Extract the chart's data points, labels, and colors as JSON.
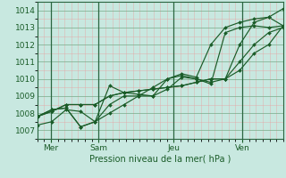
{
  "title": "",
  "xlabel": "Pression niveau de la mer( hPa )",
  "ylabel": "",
  "bg_color": "#c8e8e0",
  "plot_bg_color": "#c8e8e0",
  "grid_major_color": "#77aa88",
  "grid_minor_color": "#e8a0a0",
  "line_color": "#1a5c28",
  "tick_label_color": "#1a5c28",
  "xlabel_color": "#1a5c28",
  "ylim": [
    1006.7,
    1014.3
  ],
  "yticks": [
    1007,
    1008,
    1009,
    1010,
    1011,
    1012,
    1013,
    1014
  ],
  "xlim": [
    0,
    18
  ],
  "xtick_positions": [
    1,
    4.5,
    10,
    15
  ],
  "xtick_labels": [
    "Mer",
    "Sam",
    "Jeu",
    "Ven"
  ],
  "major_vlines": [
    1,
    4.5,
    10,
    15
  ],
  "series": [
    [
      1007.3,
      1007.5,
      1008.2,
      1008.1,
      1007.5,
      1009.6,
      1009.2,
      1009.1,
      1009.0,
      1010.0,
      1010.3,
      1010.1,
      1012.0,
      1013.0,
      1013.3,
      1013.5,
      1013.6,
      1014.1
    ],
    [
      1007.8,
      1008.2,
      1008.3,
      1007.2,
      1007.5,
      1008.0,
      1008.5,
      1009.0,
      1009.0,
      1009.4,
      1010.1,
      1010.0,
      1009.7,
      1012.7,
      1013.0,
      1013.1,
      1013.0,
      1013.1
    ],
    [
      1007.8,
      1008.2,
      1008.3,
      1007.2,
      1007.5,
      1008.5,
      1009.0,
      1009.0,
      1009.5,
      1010.0,
      1010.2,
      1010.0,
      1009.8,
      1010.0,
      1012.0,
      1013.3,
      1013.6,
      1013.1
    ],
    [
      1007.8,
      1008.1,
      1008.5,
      1008.5,
      1008.5,
      1009.0,
      1009.2,
      1009.3,
      1009.4,
      1009.5,
      1009.6,
      1009.8,
      1010.0,
      1010.0,
      1011.0,
      1012.0,
      1012.7,
      1013.0
    ],
    [
      1007.8,
      1008.1,
      1008.5,
      1008.5,
      1008.5,
      1009.0,
      1009.2,
      1009.3,
      1009.4,
      1009.5,
      1009.6,
      1009.8,
      1010.0,
      1010.0,
      1010.5,
      1011.5,
      1012.0,
      1013.1
    ]
  ],
  "n_points": 18
}
